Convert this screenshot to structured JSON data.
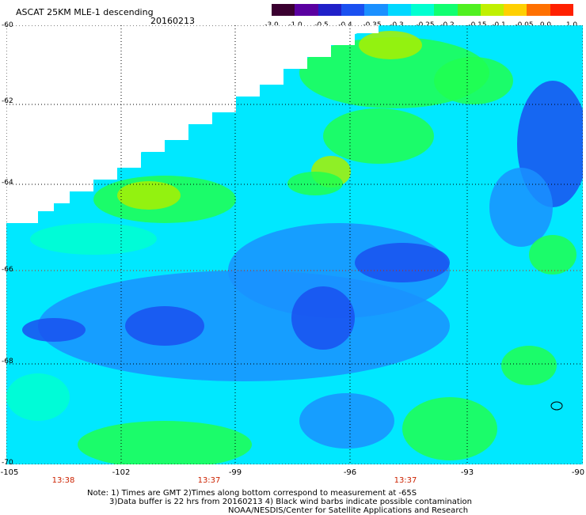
{
  "header": {
    "title": "ASCAT 25KM MLE-1 descending",
    "date": "20160213"
  },
  "colorbar": {
    "labels": [
      "-3.0",
      "-1.0",
      "-0.5",
      "-0.4",
      "-0.35",
      "-0.3",
      "-0.25",
      "-0.2",
      "-0.15",
      "-0.1",
      "-0.05",
      "0.0",
      "1.0"
    ],
    "colors": [
      "#3a0030",
      "#5a00a0",
      "#2020c8",
      "#1a50f0",
      "#1a90ff",
      "#00d8ff",
      "#00ffd0",
      "#10ff70",
      "#50f020",
      "#c0f000",
      "#ffd000",
      "#ff7000",
      "#ff2000"
    ]
  },
  "map": {
    "lat_labels": [
      "-60",
      "-62",
      "-64",
      "-66",
      "-68",
      "-70"
    ],
    "lon_labels": [
      "-105",
      "-102",
      "-99",
      "-96",
      "-93",
      "-90"
    ],
    "pass_times": [
      "13:38",
      "13:37",
      "13:37"
    ],
    "palette": {
      "blue": "#1a50f0",
      "skyblue": "#1a90ff",
      "cyan": "#00e8ff",
      "aqua": "#00ffd0",
      "green": "#20ff50",
      "yellowgreen": "#a8f000",
      "grid": "#000000",
      "timegrid": "#cc2200"
    }
  },
  "notes": [
    "Note: 1) Times are GMT 2)Times along bottom correspond to measurement at -65S",
    "3)Data buffer is 22 hrs from 20160213 4) Black wind barbs indicate possible contamination",
    "NOAA/NESDIS/Center for Satellite Applications and Research"
  ]
}
